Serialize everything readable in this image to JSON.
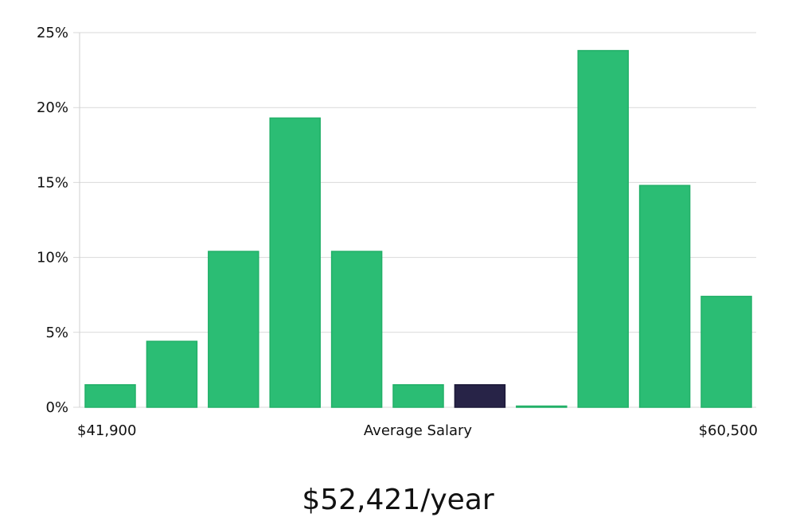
{
  "chart_data": {
    "type": "bar",
    "values": [
      1.5,
      4.4,
      10.4,
      19.3,
      10.4,
      1.5,
      1.5,
      0.05,
      23.8,
      14.8,
      7.4
    ],
    "highlight_index": 6,
    "ylim": [
      0,
      25
    ],
    "y_ticks": [
      "0%",
      "5%",
      "10%",
      "15%",
      "20%",
      "25%"
    ],
    "y_tick_values": [
      0,
      5,
      10,
      15,
      20,
      25
    ],
    "x_labels": {
      "min": "$41,900",
      "center": "Average Salary",
      "max": "$60,500"
    },
    "grid": true,
    "colors": {
      "bar": "#2bbd74",
      "bar_stroke": "#22b068",
      "highlight": "#272347",
      "highlight_stroke": "#1c1838"
    }
  },
  "summary": {
    "average_salary": "$52,421/year"
  }
}
